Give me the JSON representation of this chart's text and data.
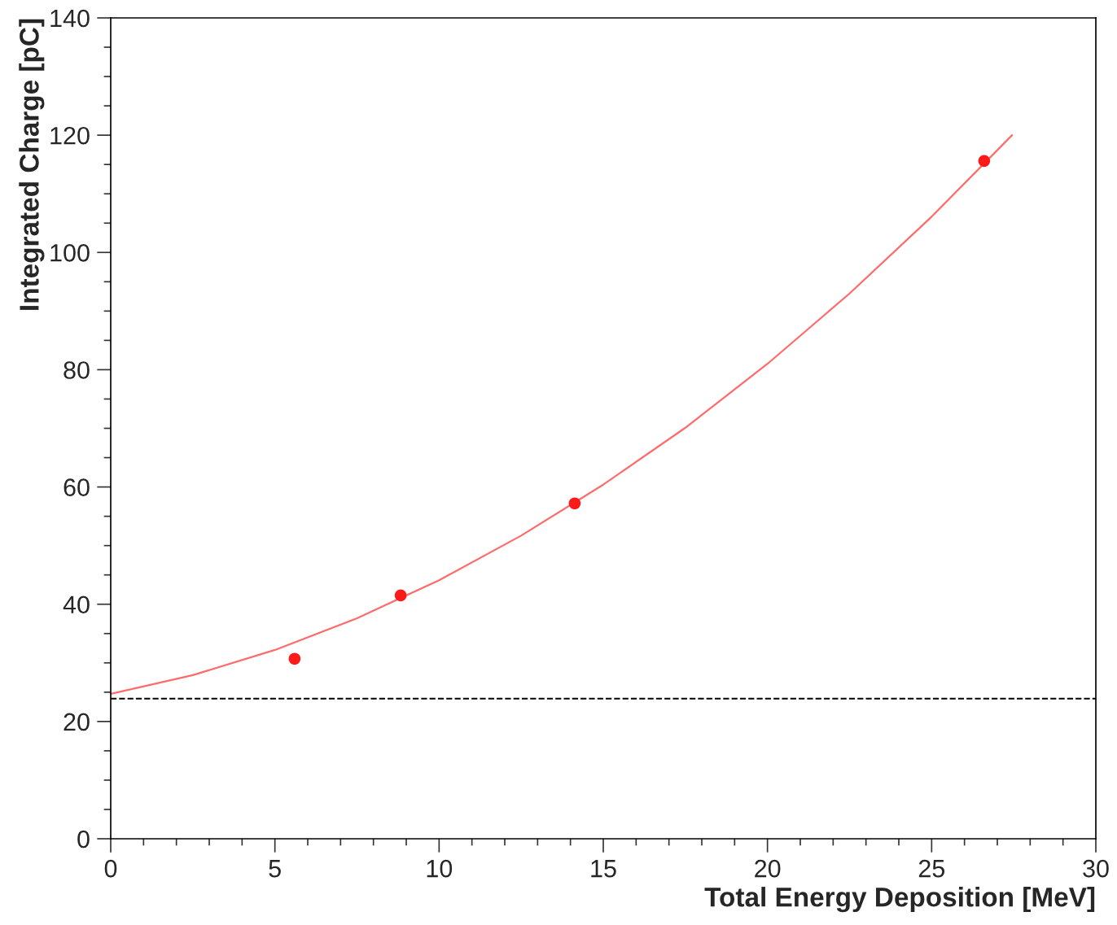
{
  "chart_data": {
    "type": "scatter",
    "xlabel": "Total Energy Deposition [MeV]",
    "ylabel": "Integrated Charge [pC]",
    "xlim": [
      0,
      30
    ],
    "ylim": [
      0,
      140
    ],
    "xticks": [
      0,
      {
        "value": 1,
        "label": null
      },
      {
        "value": 2,
        "label": null
      },
      {
        "value": 3,
        "label": null
      },
      {
        "value": 4,
        "label": null
      },
      5,
      {
        "value": 6,
        "label": null
      },
      {
        "value": 7,
        "label": null
      },
      {
        "value": 8,
        "label": null
      },
      {
        "value": 9,
        "label": null
      },
      10,
      {
        "value": 11,
        "label": null
      },
      {
        "value": 12,
        "label": null
      },
      {
        "value": 13,
        "label": null
      },
      {
        "value": 14,
        "label": null
      },
      15,
      {
        "value": 16,
        "label": null
      },
      {
        "value": 17,
        "label": null
      },
      {
        "value": 18,
        "label": null
      },
      {
        "value": 19,
        "label": null
      },
      20,
      {
        "value": 21,
        "label": null
      },
      {
        "value": 22,
        "label": null
      },
      {
        "value": 23,
        "label": null
      },
      {
        "value": 24,
        "label": null
      },
      25,
      {
        "value": 26,
        "label": null
      },
      {
        "value": 27,
        "label": null
      },
      {
        "value": 28,
        "label": null
      },
      {
        "value": 29,
        "label": null
      },
      30
    ],
    "yticks": [
      0,
      {
        "value": 5,
        "label": null
      },
      {
        "value": 10,
        "label": null
      },
      {
        "value": 15,
        "label": null
      },
      20,
      {
        "value": 25,
        "label": null
      },
      {
        "value": 30,
        "label": null
      },
      {
        "value": 35,
        "label": null
      },
      40,
      {
        "value": 45,
        "label": null
      },
      {
        "value": 50,
        "label": null
      },
      {
        "value": 55,
        "label": null
      },
      60,
      {
        "value": 65,
        "label": null
      },
      {
        "value": 70,
        "label": null
      },
      {
        "value": 75,
        "label": null
      },
      80,
      {
        "value": 85,
        "label": null
      },
      {
        "value": 90,
        "label": null
      },
      {
        "value": 95,
        "label": null
      },
      100,
      {
        "value": 105,
        "label": null
      },
      {
        "value": 110,
        "label": null
      },
      {
        "value": 115,
        "label": null
      },
      120,
      {
        "value": 125,
        "label": null
      },
      {
        "value": 130,
        "label": null
      },
      {
        "value": 135,
        "label": null
      },
      140
    ],
    "grid": false,
    "legend": false,
    "marker": "circle",
    "series": [
      {
        "color": "#ff1a1a",
        "x": [
          5.6,
          8.83,
          14.13,
          26.6
        ],
        "values": [
          30.7,
          41.5,
          57.2,
          115.6
        ]
      },
      {
        "type": "line",
        "color": "#ff6b6b",
        "marker": "none",
        "line_style": "solid",
        "x": [
          0,
          2.5,
          5,
          7.5,
          10,
          12.5,
          15,
          17.5,
          20,
          22.5,
          25,
          27.45
        ],
        "values": [
          24.7,
          27.9,
          32.2,
          37.6,
          44.1,
          51.7,
          60.4,
          70.1,
          81.0,
          93.0,
          106.1,
          120.0
        ]
      }
    ],
    "ref_lines": [
      {
        "axis": "y",
        "value": 23.9,
        "color": "#000000",
        "line_style": "dashed"
      }
    ]
  }
}
